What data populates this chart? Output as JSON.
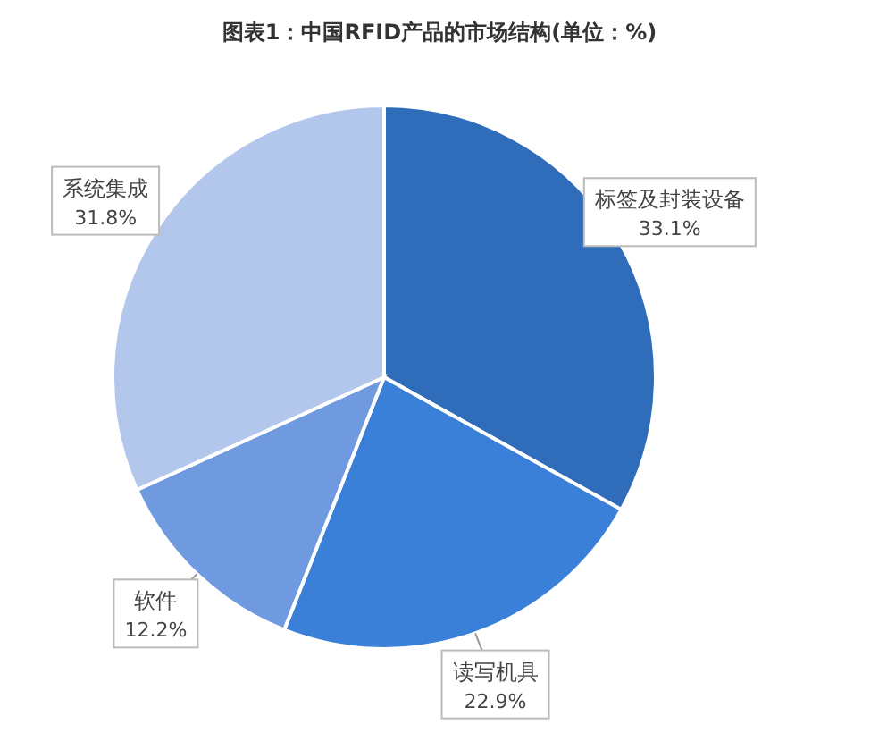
{
  "chart_data": {
    "type": "pie",
    "title": "图表1：中国RFID产品的市场结构(单位：%)",
    "categories": [
      "标签及封装设备",
      "读写机具",
      "软件",
      "系统集成"
    ],
    "values": [
      33.1,
      22.9,
      12.2,
      31.8
    ],
    "colors": [
      "#2f6cb9",
      "#3a80d8",
      "#6f9ae0",
      "#b3c6ec"
    ],
    "value_labels": [
      "33.1%",
      "22.9%",
      "12.2%",
      "31.8%"
    ]
  }
}
